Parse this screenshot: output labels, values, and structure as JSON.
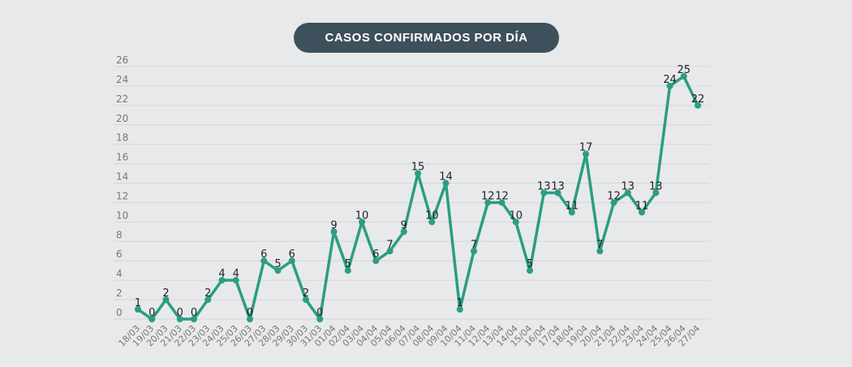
{
  "chart_data": {
    "type": "line",
    "title": "CASOS CONFIRMADOS POR DÍA",
    "xlabel": "",
    "ylabel": "",
    "ylim": [
      0,
      26
    ],
    "yticks": [
      0,
      2,
      4,
      6,
      8,
      10,
      12,
      14,
      16,
      18,
      20,
      22,
      24,
      26
    ],
    "grid": true,
    "line_color": "#2a9d83",
    "categories": [
      "18/03",
      "19/03",
      "20/03",
      "21/03",
      "22/03",
      "23/03",
      "24/03",
      "25/03",
      "26/03",
      "27/03",
      "28/03",
      "29/03",
      "30/03",
      "31/03",
      "01/04",
      "02/04",
      "03/04",
      "04/04",
      "05/04",
      "06/04",
      "07/04",
      "08/04",
      "09/04",
      "10/04",
      "11/04",
      "12/04",
      "13/04",
      "14/04",
      "15/04",
      "16/04",
      "17/04",
      "18/04",
      "19/04",
      "20/04",
      "21/04",
      "22/04",
      "23/04",
      "24/04",
      "25/04",
      "26/04",
      "27/04"
    ],
    "values": [
      1,
      0,
      2,
      0,
      0,
      2,
      4,
      4,
      0,
      6,
      5,
      6,
      2,
      0,
      9,
      5,
      10,
      6,
      7,
      9,
      15,
      10,
      14,
      1,
      7,
      12,
      12,
      10,
      5,
      13,
      13,
      11,
      17,
      7,
      12,
      13,
      11,
      13,
      24,
      25,
      22
    ]
  }
}
